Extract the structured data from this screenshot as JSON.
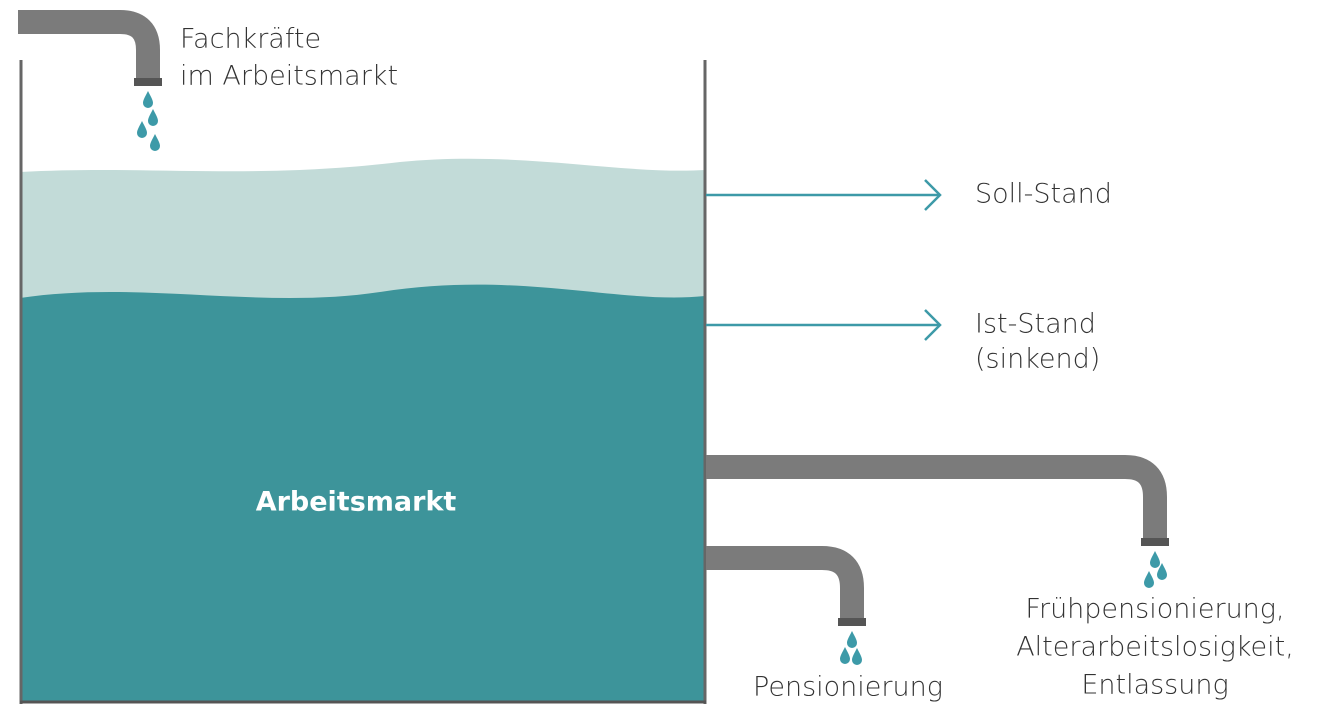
{
  "inflow": {
    "lines": [
      "Fachkräfte",
      "im Arbeitsmarkt"
    ]
  },
  "tank": {
    "label": "Arbeitsmarkt"
  },
  "levels": {
    "target": {
      "lines": [
        "Soll-Stand"
      ]
    },
    "actual": {
      "lines": [
        "Ist-Stand",
        "(sinkend)"
      ]
    }
  },
  "outflows": [
    {
      "lines": [
        "Pensionierung"
      ]
    },
    {
      "lines": [
        "Frühpensionierung,",
        "Alterarbeitslosigkeit,",
        "Entlassung"
      ]
    }
  ]
}
